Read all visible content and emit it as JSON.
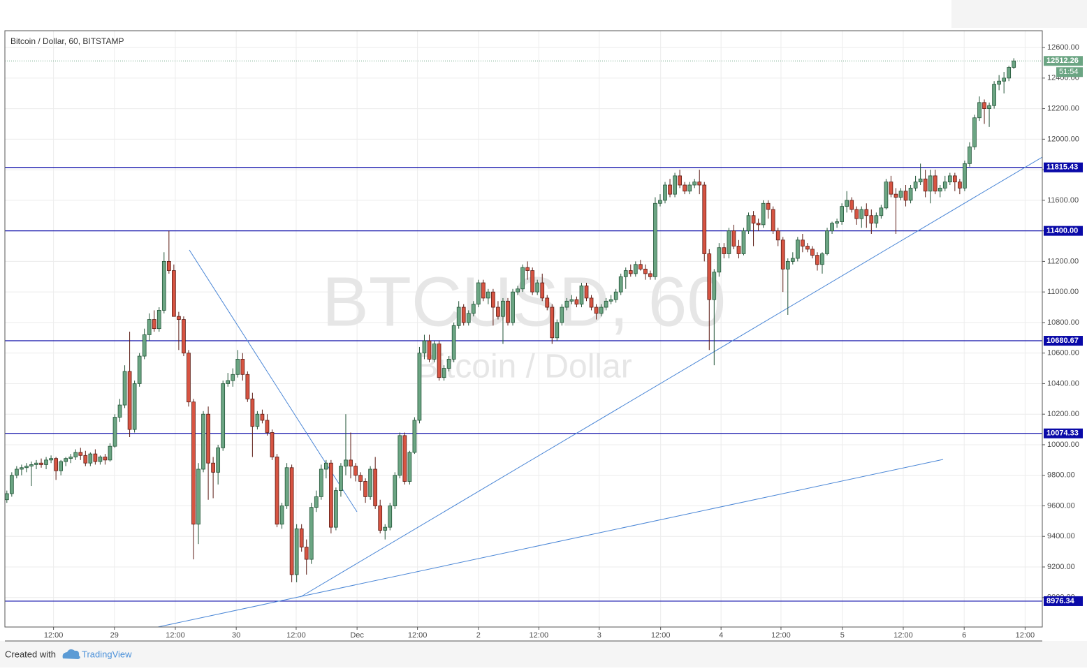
{
  "chart_data": {
    "type": "candlestick",
    "title": "Bitcoin / Dollar, 60, BITSTAMP",
    "watermark": "BTCUSD, 60",
    "watermark_subtitle": "Bitcoin / Dollar",
    "footer_prefix": "Created with",
    "footer_brand": "TradingView",
    "up_color": "#6ba583",
    "down_color": "#d75442",
    "level_color": "#0a0aa8",
    "grid": true,
    "ylim": [
      8807,
      12710
    ],
    "xlim": [
      -0.4,
      210.8
    ],
    "yticks": [
      {
        "value": 9000,
        "label": "9000.00"
      },
      {
        "value": 9200,
        "label": "9200.00"
      },
      {
        "value": 9400,
        "label": "9400.00"
      },
      {
        "value": 9600,
        "label": "9600.00"
      },
      {
        "value": 9800,
        "label": "9800.00"
      },
      {
        "value": 10000,
        "label": "10000.00"
      },
      {
        "value": 10200,
        "label": "10200.00"
      },
      {
        "value": 10400,
        "label": "10400.00"
      },
      {
        "value": 10600,
        "label": "10600.00"
      },
      {
        "value": 10800,
        "label": "10800.00"
      },
      {
        "value": 11000,
        "label": "11000.00"
      },
      {
        "value": 11200,
        "label": "11200.00"
      },
      {
        "value": 11400,
        "label": "11400.00"
      },
      {
        "value": 11600,
        "label": "11600.00"
      },
      {
        "value": 11800,
        "label": "11800.00"
      },
      {
        "value": 12000,
        "label": "12000.00"
      },
      {
        "value": 12200,
        "label": "12200.00"
      },
      {
        "value": 12400,
        "label": "12400.00"
      },
      {
        "value": 12600,
        "label": "12600.00"
      }
    ],
    "xticks": [
      {
        "value": 9.5,
        "label": "12:00"
      },
      {
        "value": 21.9,
        "label": "29"
      },
      {
        "value": 34.3,
        "label": "12:00"
      },
      {
        "value": 46.7,
        "label": "30"
      },
      {
        "value": 58.9,
        "label": "12:00"
      },
      {
        "value": 71.3,
        "label": "Dec"
      },
      {
        "value": 83.6,
        "label": "12:00"
      },
      {
        "value": 96,
        "label": "2"
      },
      {
        "value": 108.3,
        "label": "12:00"
      },
      {
        "value": 120.6,
        "label": "3"
      },
      {
        "value": 133.1,
        "label": "12:00"
      },
      {
        "value": 145.4,
        "label": "4"
      },
      {
        "value": 157.6,
        "label": "12:00"
      },
      {
        "value": 170.1,
        "label": "5"
      },
      {
        "value": 182.5,
        "label": "12:00"
      },
      {
        "value": 194.9,
        "label": "6"
      },
      {
        "value": 207.3,
        "label": "12:00"
      }
    ],
    "levels": [
      11815.43,
      {
        "value": 11400,
        "label": "11400.00"
      },
      10680.67,
      10074.33,
      8976.34
    ],
    "last_price": 12512.26,
    "countdown": "51:54",
    "candles": [
      [
        9640,
        9700,
        9620,
        9680
      ],
      [
        9680,
        9820,
        9660,
        9800
      ],
      [
        9800,
        9860,
        9780,
        9840
      ],
      [
        9840,
        9870,
        9800,
        9850
      ],
      [
        9850,
        9880,
        9820,
        9860
      ],
      [
        9860,
        9890,
        9730,
        9870
      ],
      [
        9870,
        9900,
        9840,
        9880
      ],
      [
        9880,
        9910,
        9850,
        9870
      ],
      [
        9870,
        9920,
        9840,
        9900
      ],
      [
        9900,
        9930,
        9880,
        9910
      ],
      [
        9910,
        9920,
        9770,
        9830
      ],
      [
        9830,
        9900,
        9800,
        9890
      ],
      [
        9890,
        9920,
        9860,
        9910
      ],
      [
        9910,
        9940,
        9880,
        9920
      ],
      [
        9920,
        9970,
        9900,
        9950
      ],
      [
        9950,
        9980,
        9900,
        9930
      ],
      [
        9930,
        9960,
        9860,
        9880
      ],
      [
        9880,
        9950,
        9860,
        9940
      ],
      [
        9940,
        9970,
        9870,
        9890
      ],
      [
        9890,
        9930,
        9870,
        9920
      ],
      [
        9920,
        9940,
        9870,
        9900
      ],
      [
        9900,
        10010,
        9890,
        9990
      ],
      [
        9990,
        10200,
        9980,
        10180
      ],
      [
        10180,
        10300,
        10150,
        10260
      ],
      [
        10260,
        10520,
        10240,
        10480
      ],
      [
        10480,
        10740,
        10050,
        10100
      ],
      [
        10100,
        10420,
        10080,
        10400
      ],
      [
        10400,
        10600,
        10380,
        10580
      ],
      [
        10580,
        10760,
        10560,
        10720
      ],
      [
        10720,
        10860,
        10680,
        10820
      ],
      [
        10820,
        10880,
        10740,
        10760
      ],
      [
        10760,
        10900,
        10740,
        10880
      ],
      [
        10880,
        11260,
        10860,
        11200
      ],
      [
        11200,
        11400,
        11120,
        11140
      ],
      [
        11140,
        11180,
        10840,
        10840
      ],
      [
        10840,
        10870,
        10620,
        10820
      ],
      [
        10820,
        10840,
        10580,
        10600
      ],
      [
        10600,
        10620,
        10250,
        10280
      ],
      [
        10280,
        10300,
        9250,
        9480
      ],
      [
        9480,
        9880,
        9350,
        9840
      ],
      [
        9840,
        10220,
        9820,
        10200
      ],
      [
        10200,
        10250,
        9640,
        9880
      ],
      [
        9880,
        9920,
        9650,
        9820
      ],
      [
        9820,
        10000,
        9740,
        9980
      ],
      [
        9980,
        10420,
        9960,
        10400
      ],
      [
        10400,
        10470,
        10380,
        10420
      ],
      [
        10420,
        10500,
        10380,
        10460
      ],
      [
        10460,
        10620,
        10440,
        10560
      ],
      [
        10560,
        10600,
        10420,
        10460
      ],
      [
        10460,
        10480,
        10280,
        10300
      ],
      [
        10300,
        10340,
        9920,
        10120
      ],
      [
        10120,
        10220,
        10100,
        10200
      ],
      [
        10200,
        10230,
        10140,
        10160
      ],
      [
        10160,
        10200,
        10060,
        10080
      ],
      [
        10080,
        10100,
        9900,
        9920
      ],
      [
        9920,
        9940,
        9460,
        9480
      ],
      [
        9480,
        9620,
        9450,
        9600
      ],
      [
        9600,
        9880,
        9580,
        9850
      ],
      [
        9850,
        9870,
        9100,
        9150
      ],
      [
        9150,
        9480,
        9100,
        9450
      ],
      [
        9450,
        9480,
        9300,
        9330
      ],
      [
        9330,
        9380,
        9150,
        9250
      ],
      [
        9250,
        9620,
        9220,
        9590
      ],
      [
        9590,
        9700,
        9560,
        9660
      ],
      [
        9660,
        9870,
        9640,
        9840
      ],
      [
        9840,
        9900,
        9780,
        9880
      ],
      [
        9880,
        9900,
        9420,
        9460
      ],
      [
        9460,
        9720,
        9440,
        9700
      ],
      [
        9700,
        9880,
        9660,
        9860
      ],
      [
        9860,
        10200,
        9800,
        9900
      ],
      [
        9900,
        10080,
        9780,
        9860
      ],
      [
        9860,
        9880,
        9760,
        9800
      ],
      [
        9800,
        9820,
        9700,
        9760
      ],
      [
        9760,
        9780,
        9620,
        9660
      ],
      [
        9660,
        9860,
        9640,
        9840
      ],
      [
        9840,
        9920,
        9580,
        9600
      ],
      [
        9600,
        9640,
        9420,
        9440
      ],
      [
        9440,
        9480,
        9380,
        9460
      ],
      [
        9460,
        9620,
        9440,
        9600
      ],
      [
        9600,
        9820,
        9580,
        9800
      ],
      [
        9800,
        10080,
        9780,
        10060
      ],
      [
        10060,
        10080,
        9740,
        9760
      ],
      [
        9760,
        9960,
        9740,
        9950
      ],
      [
        9950,
        10180,
        9940,
        10160
      ],
      [
        10160,
        10640,
        10140,
        10600
      ],
      [
        10600,
        10720,
        10560,
        10680
      ],
      [
        10680,
        10720,
        10540,
        10560
      ],
      [
        10560,
        10680,
        10540,
        10660
      ],
      [
        10660,
        10680,
        10420,
        10440
      ],
      [
        10440,
        10520,
        10420,
        10500
      ],
      [
        10500,
        10580,
        10480,
        10560
      ],
      [
        10560,
        10800,
        10540,
        10780
      ],
      [
        10780,
        10940,
        10760,
        10900
      ],
      [
        10900,
        10920,
        10780,
        10800
      ],
      [
        10800,
        10880,
        10780,
        10860
      ],
      [
        10860,
        10940,
        10840,
        10920
      ],
      [
        10920,
        11080,
        10900,
        11060
      ],
      [
        11060,
        11080,
        10940,
        10960
      ],
      [
        10960,
        11020,
        10920,
        11000
      ],
      [
        11000,
        11020,
        10780,
        10900
      ],
      [
        10900,
        10940,
        10820,
        10840
      ],
      [
        10840,
        10960,
        10660,
        10940
      ],
      [
        10940,
        10960,
        10780,
        10800
      ],
      [
        10800,
        11020,
        10780,
        11000
      ],
      [
        11000,
        11040,
        10980,
        11020
      ],
      [
        11020,
        11180,
        11000,
        11160
      ],
      [
        11160,
        11200,
        11080,
        11140
      ],
      [
        11140,
        11160,
        10980,
        11000
      ],
      [
        11000,
        11080,
        10980,
        11060
      ],
      [
        11060,
        11120,
        10940,
        10960
      ],
      [
        10960,
        10980,
        10880,
        10900
      ],
      [
        10900,
        10920,
        10660,
        10700
      ],
      [
        10700,
        10820,
        10680,
        10800
      ],
      [
        10800,
        10920,
        10780,
        10900
      ],
      [
        10900,
        10960,
        10880,
        10940
      ],
      [
        10940,
        10980,
        10920,
        10950
      ],
      [
        10950,
        10970,
        10900,
        10920
      ],
      [
        10920,
        11060,
        10900,
        11040
      ],
      [
        11040,
        11060,
        10940,
        10960
      ],
      [
        10960,
        10980,
        10880,
        10900
      ],
      [
        10900,
        10920,
        10820,
        10860
      ],
      [
        10860,
        10920,
        10840,
        10900
      ],
      [
        10900,
        10960,
        10880,
        10940
      ],
      [
        10940,
        10980,
        10920,
        10950
      ],
      [
        10950,
        11020,
        10930,
        11000
      ],
      [
        11000,
        11120,
        10980,
        11100
      ],
      [
        11100,
        11160,
        11020,
        11140
      ],
      [
        11140,
        11180,
        11100,
        11120
      ],
      [
        11120,
        11200,
        11100,
        11180
      ],
      [
        11180,
        11210,
        11140,
        11150
      ],
      [
        11150,
        11180,
        11080,
        11120
      ],
      [
        11120,
        11140,
        11080,
        11100
      ],
      [
        11100,
        11620,
        11080,
        11580
      ],
      [
        11580,
        11640,
        11560,
        11600
      ],
      [
        11600,
        11720,
        11580,
        11700
      ],
      [
        11700,
        11740,
        11620,
        11640
      ],
      [
        11640,
        11780,
        11620,
        11760
      ],
      [
        11760,
        11800,
        11680,
        11700
      ],
      [
        11700,
        11720,
        11640,
        11660
      ],
      [
        11660,
        11720,
        11640,
        11700
      ],
      [
        11700,
        11740,
        11680,
        11720
      ],
      [
        11720,
        11800,
        11640,
        11700
      ],
      [
        11700,
        11720,
        11200,
        11250
      ],
      [
        11250,
        11280,
        10620,
        10950
      ],
      [
        10950,
        11150,
        10520,
        11130
      ],
      [
        11130,
        11320,
        11100,
        11290
      ],
      [
        11290,
        11320,
        11220,
        11250
      ],
      [
        11250,
        11420,
        11220,
        11400
      ],
      [
        11400,
        11440,
        11280,
        11300
      ],
      [
        11300,
        11340,
        11220,
        11250
      ],
      [
        11250,
        11420,
        11240,
        11400
      ],
      [
        11400,
        11520,
        11380,
        11500
      ],
      [
        11500,
        11530,
        11300,
        11450
      ],
      [
        11450,
        11480,
        11400,
        11440
      ],
      [
        11440,
        11600,
        11420,
        11580
      ],
      [
        11580,
        11600,
        11480,
        11540
      ],
      [
        11540,
        11560,
        11380,
        11400
      ],
      [
        11400,
        11420,
        11300,
        11340
      ],
      [
        11340,
        11360,
        11000,
        11150
      ],
      [
        11150,
        11220,
        10850,
        11200
      ],
      [
        11200,
        11260,
        11180,
        11220
      ],
      [
        11220,
        11360,
        11200,
        11340
      ],
      [
        11340,
        11380,
        11260,
        11300
      ],
      [
        11300,
        11320,
        11260,
        11280
      ],
      [
        11280,
        11300,
        11220,
        11240
      ],
      [
        11240,
        11260,
        11140,
        11180
      ],
      [
        11180,
        11260,
        11120,
        11250
      ],
      [
        11250,
        11420,
        11240,
        11400
      ],
      [
        11400,
        11460,
        11380,
        11450
      ],
      [
        11450,
        11480,
        11420,
        11460
      ],
      [
        11460,
        11580,
        11440,
        11560
      ],
      [
        11560,
        11660,
        11520,
        11600
      ],
      [
        11600,
        11620,
        11520,
        11540
      ],
      [
        11540,
        11560,
        11440,
        11480
      ],
      [
        11480,
        11560,
        11420,
        11540
      ],
      [
        11540,
        11580,
        11420,
        11500
      ],
      [
        11500,
        11540,
        11380,
        11450
      ],
      [
        11450,
        11520,
        11420,
        11500
      ],
      [
        11500,
        11570,
        11480,
        11550
      ],
      [
        11550,
        11740,
        11540,
        11720
      ],
      [
        11720,
        11760,
        11620,
        11640
      ],
      [
        11640,
        11680,
        11380,
        11620
      ],
      [
        11620,
        11680,
        11600,
        11660
      ],
      [
        11660,
        11700,
        11560,
        11600
      ],
      [
        11600,
        11700,
        11580,
        11680
      ],
      [
        11680,
        11760,
        11660,
        11720
      ],
      [
        11720,
        11840,
        11700,
        11740
      ],
      [
        11740,
        11800,
        11620,
        11660
      ],
      [
        11660,
        11800,
        11580,
        11760
      ],
      [
        11760,
        11800,
        11640,
        11660
      ],
      [
        11660,
        11700,
        11620,
        11680
      ],
      [
        11680,
        11760,
        11660,
        11720
      ],
      [
        11720,
        11780,
        11700,
        11760
      ],
      [
        11760,
        11780,
        11660,
        11720
      ],
      [
        11720,
        11740,
        11640,
        11680
      ],
      [
        11680,
        11860,
        11660,
        11840
      ],
      [
        11840,
        11980,
        11820,
        11950
      ],
      [
        11950,
        12160,
        11930,
        12140
      ],
      [
        12140,
        12280,
        12120,
        12240
      ],
      [
        12240,
        12260,
        12100,
        12200
      ],
      [
        12200,
        12240,
        12080,
        12220
      ],
      [
        12220,
        12380,
        12200,
        12360
      ],
      [
        12360,
        12420,
        12320,
        12380
      ],
      [
        12380,
        12440,
        12300,
        12400
      ],
      [
        12400,
        12480,
        12380,
        12470
      ],
      [
        12470,
        12530,
        12460,
        12512.26
      ]
    ]
  }
}
